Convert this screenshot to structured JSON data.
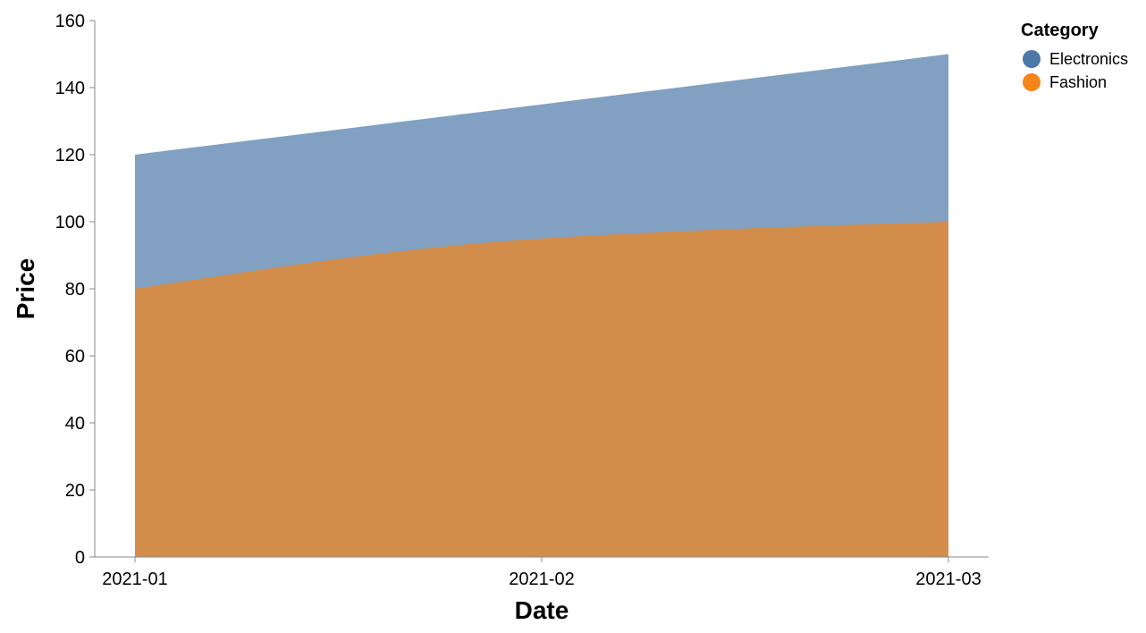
{
  "chart_data": {
    "type": "area",
    "stacked": false,
    "interpolation": "monotone",
    "x": [
      "2021-01",
      "2021-02",
      "2021-03"
    ],
    "series": [
      {
        "name": "Electronics",
        "values": [
          120,
          135,
          150
        ],
        "color": "#4c78a8",
        "opacity": 0.7
      },
      {
        "name": "Fashion",
        "values": [
          80,
          95,
          100
        ],
        "color": "#f58518",
        "opacity": 0.7
      }
    ],
    "xlabel": "Date",
    "ylabel": "Price",
    "ylim": [
      0,
      160
    ],
    "yticks": [
      0,
      20,
      40,
      60,
      80,
      100,
      120,
      140,
      160
    ],
    "xticks": [
      "2021-01",
      "2021-02",
      "2021-03"
    ],
    "grid": false,
    "legend": {
      "title": "Category",
      "placement": "top-right"
    }
  }
}
